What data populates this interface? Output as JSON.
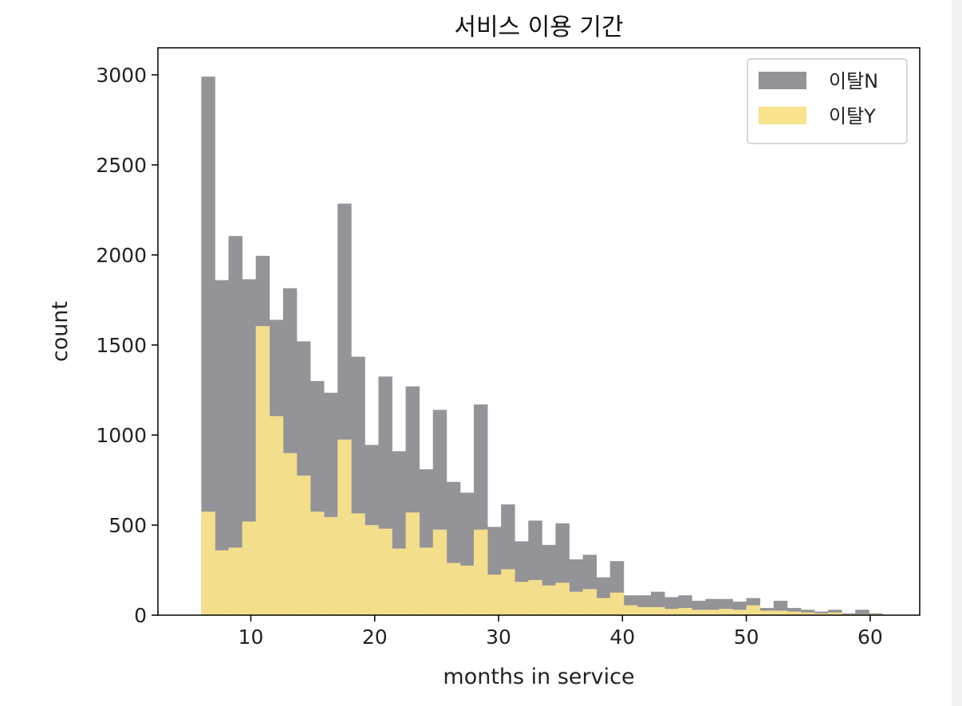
{
  "chart_data": {
    "type": "histogram",
    "title": "서비스 이용 기간",
    "xlabel": "months in service",
    "ylabel": "count",
    "xlim": [
      2.5,
      64
    ],
    "ylim": [
      0,
      3150
    ],
    "x_ticks": [
      10,
      20,
      30,
      40,
      50,
      60
    ],
    "y_ticks": [
      0,
      500,
      1000,
      1500,
      2000,
      2500,
      3000
    ],
    "bin_start": 6,
    "bin_width": 1.1,
    "legend_position": "top-right",
    "grid": false,
    "stacked": false,
    "series": [
      {
        "name": "이탈N",
        "color": "#939398",
        "values": [
          2990,
          1860,
          2105,
          1865,
          1995,
          1640,
          1815,
          1520,
          1300,
          1235,
          2285,
          1435,
          945,
          1325,
          910,
          1270,
          810,
          1140,
          740,
          680,
          1170,
          490,
          615,
          410,
          525,
          390,
          510,
          310,
          335,
          210,
          300,
          110,
          110,
          130,
          100,
          110,
          80,
          90,
          90,
          75,
          95,
          40,
          80,
          40,
          30,
          20,
          30,
          10,
          30,
          10
        ]
      },
      {
        "name": "이탈Y",
        "color": "#f8e28b",
        "values": [
          575,
          360,
          375,
          520,
          1605,
          1105,
          900,
          775,
          575,
          545,
          975,
          565,
          500,
          480,
          370,
          570,
          375,
          475,
          290,
          275,
          475,
          225,
          255,
          185,
          195,
          165,
          180,
          130,
          145,
          95,
          125,
          55,
          45,
          45,
          35,
          40,
          30,
          30,
          35,
          30,
          55,
          25,
          25,
          20,
          15,
          10,
          15,
          5,
          5,
          5
        ]
      }
    ]
  }
}
